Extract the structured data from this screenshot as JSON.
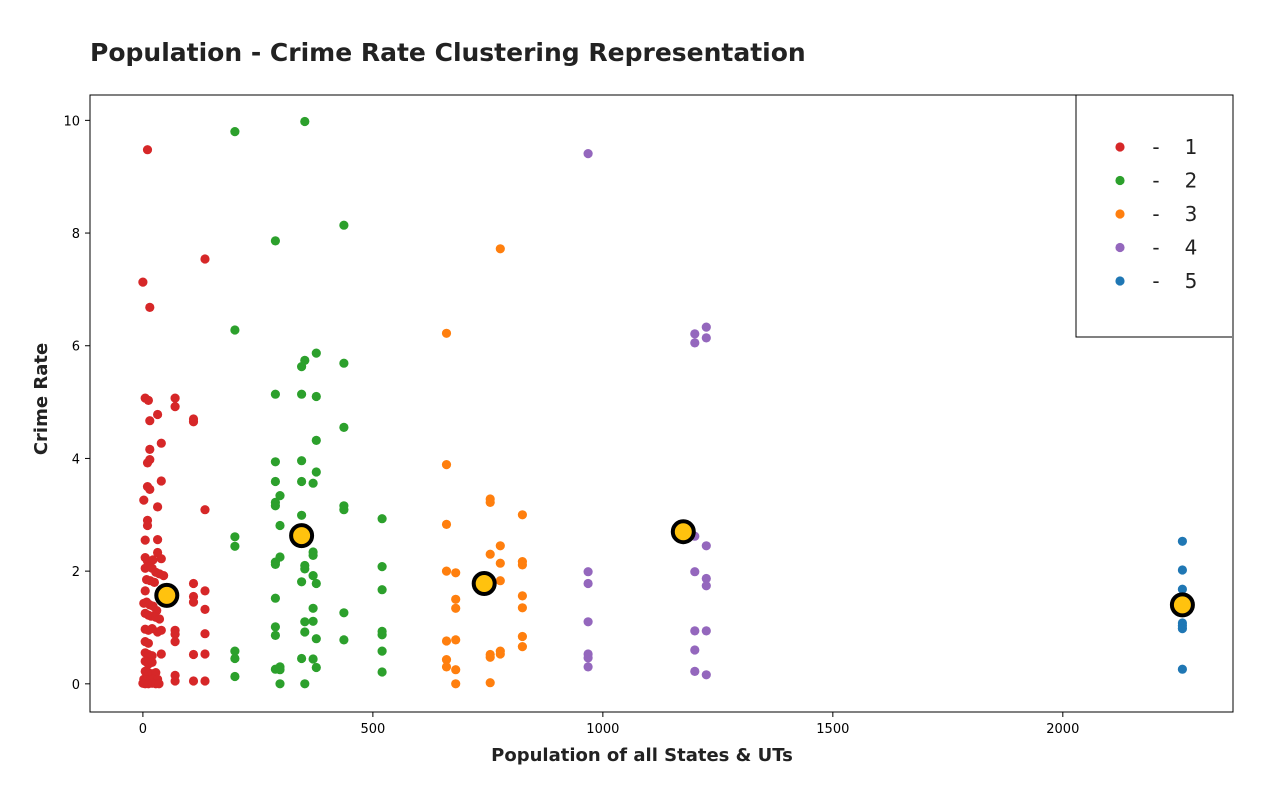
{
  "chart_data": {
    "type": "scatter",
    "title": "Population - Crime Rate Clustering Representation",
    "xlabel": "Population of all States & UTs",
    "ylabel": "Crime Rate",
    "xlim": [
      -115,
      2370
    ],
    "ylim": [
      -0.5,
      10.45
    ],
    "x_ticks": [
      0,
      500,
      1000,
      1500,
      2000
    ],
    "y_ticks": [
      0,
      2,
      4,
      6,
      8,
      10
    ],
    "grid": false,
    "legend_position": "top-right",
    "legend_separator": "-",
    "series": [
      {
        "name": "1",
        "color": "#d62728",
        "points": [
          [
            10,
            9.48
          ],
          [
            0,
            7.13
          ],
          [
            15,
            6.68
          ],
          [
            135,
            7.54
          ],
          [
            5,
            5.07
          ],
          [
            12,
            5.03
          ],
          [
            70,
            5.07
          ],
          [
            70,
            4.92
          ],
          [
            32,
            4.78
          ],
          [
            110,
            4.7
          ],
          [
            110,
            4.65
          ],
          [
            15,
            4.67
          ],
          [
            40,
            4.27
          ],
          [
            15,
            4.16
          ],
          [
            15,
            3.98
          ],
          [
            10,
            3.92
          ],
          [
            40,
            3.6
          ],
          [
            10,
            3.5
          ],
          [
            15,
            3.45
          ],
          [
            2,
            3.26
          ],
          [
            32,
            3.14
          ],
          [
            135,
            3.09
          ],
          [
            10,
            2.9
          ],
          [
            10,
            2.81
          ],
          [
            5,
            2.55
          ],
          [
            32,
            2.56
          ],
          [
            5,
            2.24
          ],
          [
            10,
            2.18
          ],
          [
            15,
            2.16
          ],
          [
            22,
            2.2
          ],
          [
            32,
            2.33
          ],
          [
            40,
            2.22
          ],
          [
            5,
            2.05
          ],
          [
            12,
            2.08
          ],
          [
            20,
            2.05
          ],
          [
            28,
            1.98
          ],
          [
            36,
            1.95
          ],
          [
            45,
            1.92
          ],
          [
            8,
            1.85
          ],
          [
            16,
            1.83
          ],
          [
            25,
            1.8
          ],
          [
            110,
            1.78
          ],
          [
            5,
            1.65
          ],
          [
            135,
            1.65
          ],
          [
            2,
            1.43
          ],
          [
            8,
            1.45
          ],
          [
            15,
            1.4
          ],
          [
            22,
            1.38
          ],
          [
            30,
            1.3
          ],
          [
            110,
            1.55
          ],
          [
            110,
            1.45
          ],
          [
            135,
            1.32
          ],
          [
            5,
            1.25
          ],
          [
            12,
            1.22
          ],
          [
            18,
            1.2
          ],
          [
            28,
            1.18
          ],
          [
            36,
            1.15
          ],
          [
            5,
            0.97
          ],
          [
            12,
            0.95
          ],
          [
            20,
            0.98
          ],
          [
            32,
            0.92
          ],
          [
            40,
            0.95
          ],
          [
            70,
            0.95
          ],
          [
            70,
            0.88
          ],
          [
            135,
            0.89
          ],
          [
            5,
            0.75
          ],
          [
            12,
            0.72
          ],
          [
            70,
            0.75
          ],
          [
            5,
            0.55
          ],
          [
            12,
            0.52
          ],
          [
            20,
            0.5
          ],
          [
            40,
            0.53
          ],
          [
            110,
            0.52
          ],
          [
            135,
            0.53
          ],
          [
            5,
            0.4
          ],
          [
            12,
            0.35
          ],
          [
            20,
            0.38
          ],
          [
            5,
            0.22
          ],
          [
            12,
            0.2
          ],
          [
            20,
            0.18
          ],
          [
            28,
            0.2
          ],
          [
            2,
            0.08
          ],
          [
            8,
            0.07
          ],
          [
            15,
            0.05
          ],
          [
            22,
            0.08
          ],
          [
            32,
            0.08
          ],
          [
            70,
            0.15
          ],
          [
            70,
            0.05
          ],
          [
            110,
            0.05
          ],
          [
            135,
            0.05
          ],
          [
            0,
            0.01
          ],
          [
            5,
            0.0
          ],
          [
            12,
            0.0
          ],
          [
            20,
            0.01
          ],
          [
            28,
            0.0
          ],
          [
            35,
            0.0
          ]
        ]
      },
      {
        "name": "2",
        "color": "#2ca02c",
        "points": [
          [
            200,
            9.8
          ],
          [
            352,
            9.98
          ],
          [
            437,
            8.14
          ],
          [
            288,
            7.86
          ],
          [
            200,
            6.28
          ],
          [
            377,
            5.87
          ],
          [
            352,
            5.74
          ],
          [
            345,
            5.63
          ],
          [
            437,
            5.69
          ],
          [
            288,
            5.14
          ],
          [
            345,
            5.14
          ],
          [
            377,
            5.1
          ],
          [
            437,
            4.55
          ],
          [
            377,
            4.32
          ],
          [
            288,
            3.94
          ],
          [
            345,
            3.96
          ],
          [
            377,
            3.76
          ],
          [
            288,
            3.59
          ],
          [
            345,
            3.59
          ],
          [
            370,
            3.56
          ],
          [
            298,
            3.34
          ],
          [
            288,
            3.22
          ],
          [
            288,
            3.16
          ],
          [
            437,
            3.16
          ],
          [
            437,
            3.09
          ],
          [
            345,
            2.99
          ],
          [
            520,
            2.93
          ],
          [
            298,
            2.81
          ],
          [
            200,
            2.61
          ],
          [
            200,
            2.44
          ],
          [
            370,
            2.34
          ],
          [
            370,
            2.28
          ],
          [
            298,
            2.25
          ],
          [
            288,
            2.16
          ],
          [
            288,
            2.12
          ],
          [
            352,
            2.1
          ],
          [
            352,
            2.04
          ],
          [
            520,
            2.08
          ],
          [
            370,
            1.92
          ],
          [
            377,
            1.78
          ],
          [
            345,
            1.81
          ],
          [
            520,
            1.67
          ],
          [
            288,
            1.52
          ],
          [
            370,
            1.34
          ],
          [
            437,
            1.26
          ],
          [
            352,
            1.1
          ],
          [
            370,
            1.11
          ],
          [
            288,
            1.01
          ],
          [
            352,
            0.92
          ],
          [
            520,
            0.93
          ],
          [
            288,
            0.86
          ],
          [
            520,
            0.87
          ],
          [
            377,
            0.8
          ],
          [
            437,
            0.78
          ],
          [
            200,
            0.58
          ],
          [
            520,
            0.58
          ],
          [
            200,
            0.45
          ],
          [
            345,
            0.45
          ],
          [
            370,
            0.44
          ],
          [
            298,
            0.3
          ],
          [
            377,
            0.29
          ],
          [
            288,
            0.26
          ],
          [
            298,
            0.25
          ],
          [
            520,
            0.21
          ],
          [
            200,
            0.13
          ],
          [
            298,
            0.0
          ],
          [
            352,
            0.0
          ]
        ]
      },
      {
        "name": "3",
        "color": "#ff7f0e",
        "points": [
          [
            777,
            7.72
          ],
          [
            660,
            6.22
          ],
          [
            660,
            3.89
          ],
          [
            755,
            3.28
          ],
          [
            755,
            3.22
          ],
          [
            825,
            3.0
          ],
          [
            660,
            2.83
          ],
          [
            777,
            2.45
          ],
          [
            755,
            2.3
          ],
          [
            825,
            2.17
          ],
          [
            777,
            2.14
          ],
          [
            825,
            2.11
          ],
          [
            660,
            2.0
          ],
          [
            680,
            1.97
          ],
          [
            777,
            1.83
          ],
          [
            825,
            1.56
          ],
          [
            680,
            1.5
          ],
          [
            825,
            1.35
          ],
          [
            680,
            1.34
          ],
          [
            825,
            0.84
          ],
          [
            680,
            0.78
          ],
          [
            660,
            0.76
          ],
          [
            825,
            0.66
          ],
          [
            777,
            0.58
          ],
          [
            777,
            0.53
          ],
          [
            755,
            0.52
          ],
          [
            755,
            0.47
          ],
          [
            660,
            0.43
          ],
          [
            660,
            0.3
          ],
          [
            680,
            0.25
          ],
          [
            680,
            0.0
          ],
          [
            755,
            0.02
          ]
        ]
      },
      {
        "name": "4",
        "color": "#9467bd",
        "points": [
          [
            968,
            9.41
          ],
          [
            1225,
            6.33
          ],
          [
            1200,
            6.21
          ],
          [
            1225,
            6.14
          ],
          [
            1200,
            6.05
          ],
          [
            1200,
            2.62
          ],
          [
            1225,
            2.45
          ],
          [
            968,
            1.99
          ],
          [
            1200,
            1.99
          ],
          [
            1225,
            1.87
          ],
          [
            968,
            1.78
          ],
          [
            1225,
            1.74
          ],
          [
            968,
            1.1
          ],
          [
            1200,
            0.94
          ],
          [
            1225,
            0.94
          ],
          [
            1200,
            0.6
          ],
          [
            968,
            0.53
          ],
          [
            968,
            0.46
          ],
          [
            968,
            0.3
          ],
          [
            1200,
            0.22
          ],
          [
            1225,
            0.16
          ]
        ]
      },
      {
        "name": "5",
        "color": "#1f77b4",
        "points": [
          [
            2260,
            2.53
          ],
          [
            2260,
            2.02
          ],
          [
            2260,
            1.68
          ],
          [
            2260,
            1.45
          ],
          [
            2260,
            1.08
          ],
          [
            2260,
            1.03
          ],
          [
            2260,
            0.98
          ],
          [
            2260,
            0.26
          ]
        ]
      }
    ],
    "centroids": {
      "color": "#ffc20e",
      "edge_color": "#000000",
      "points": [
        [
          52,
          1.57
        ],
        [
          345,
          2.63
        ],
        [
          742,
          1.78
        ],
        [
          1175,
          2.7
        ],
        [
          2260,
          1.4
        ]
      ]
    }
  }
}
